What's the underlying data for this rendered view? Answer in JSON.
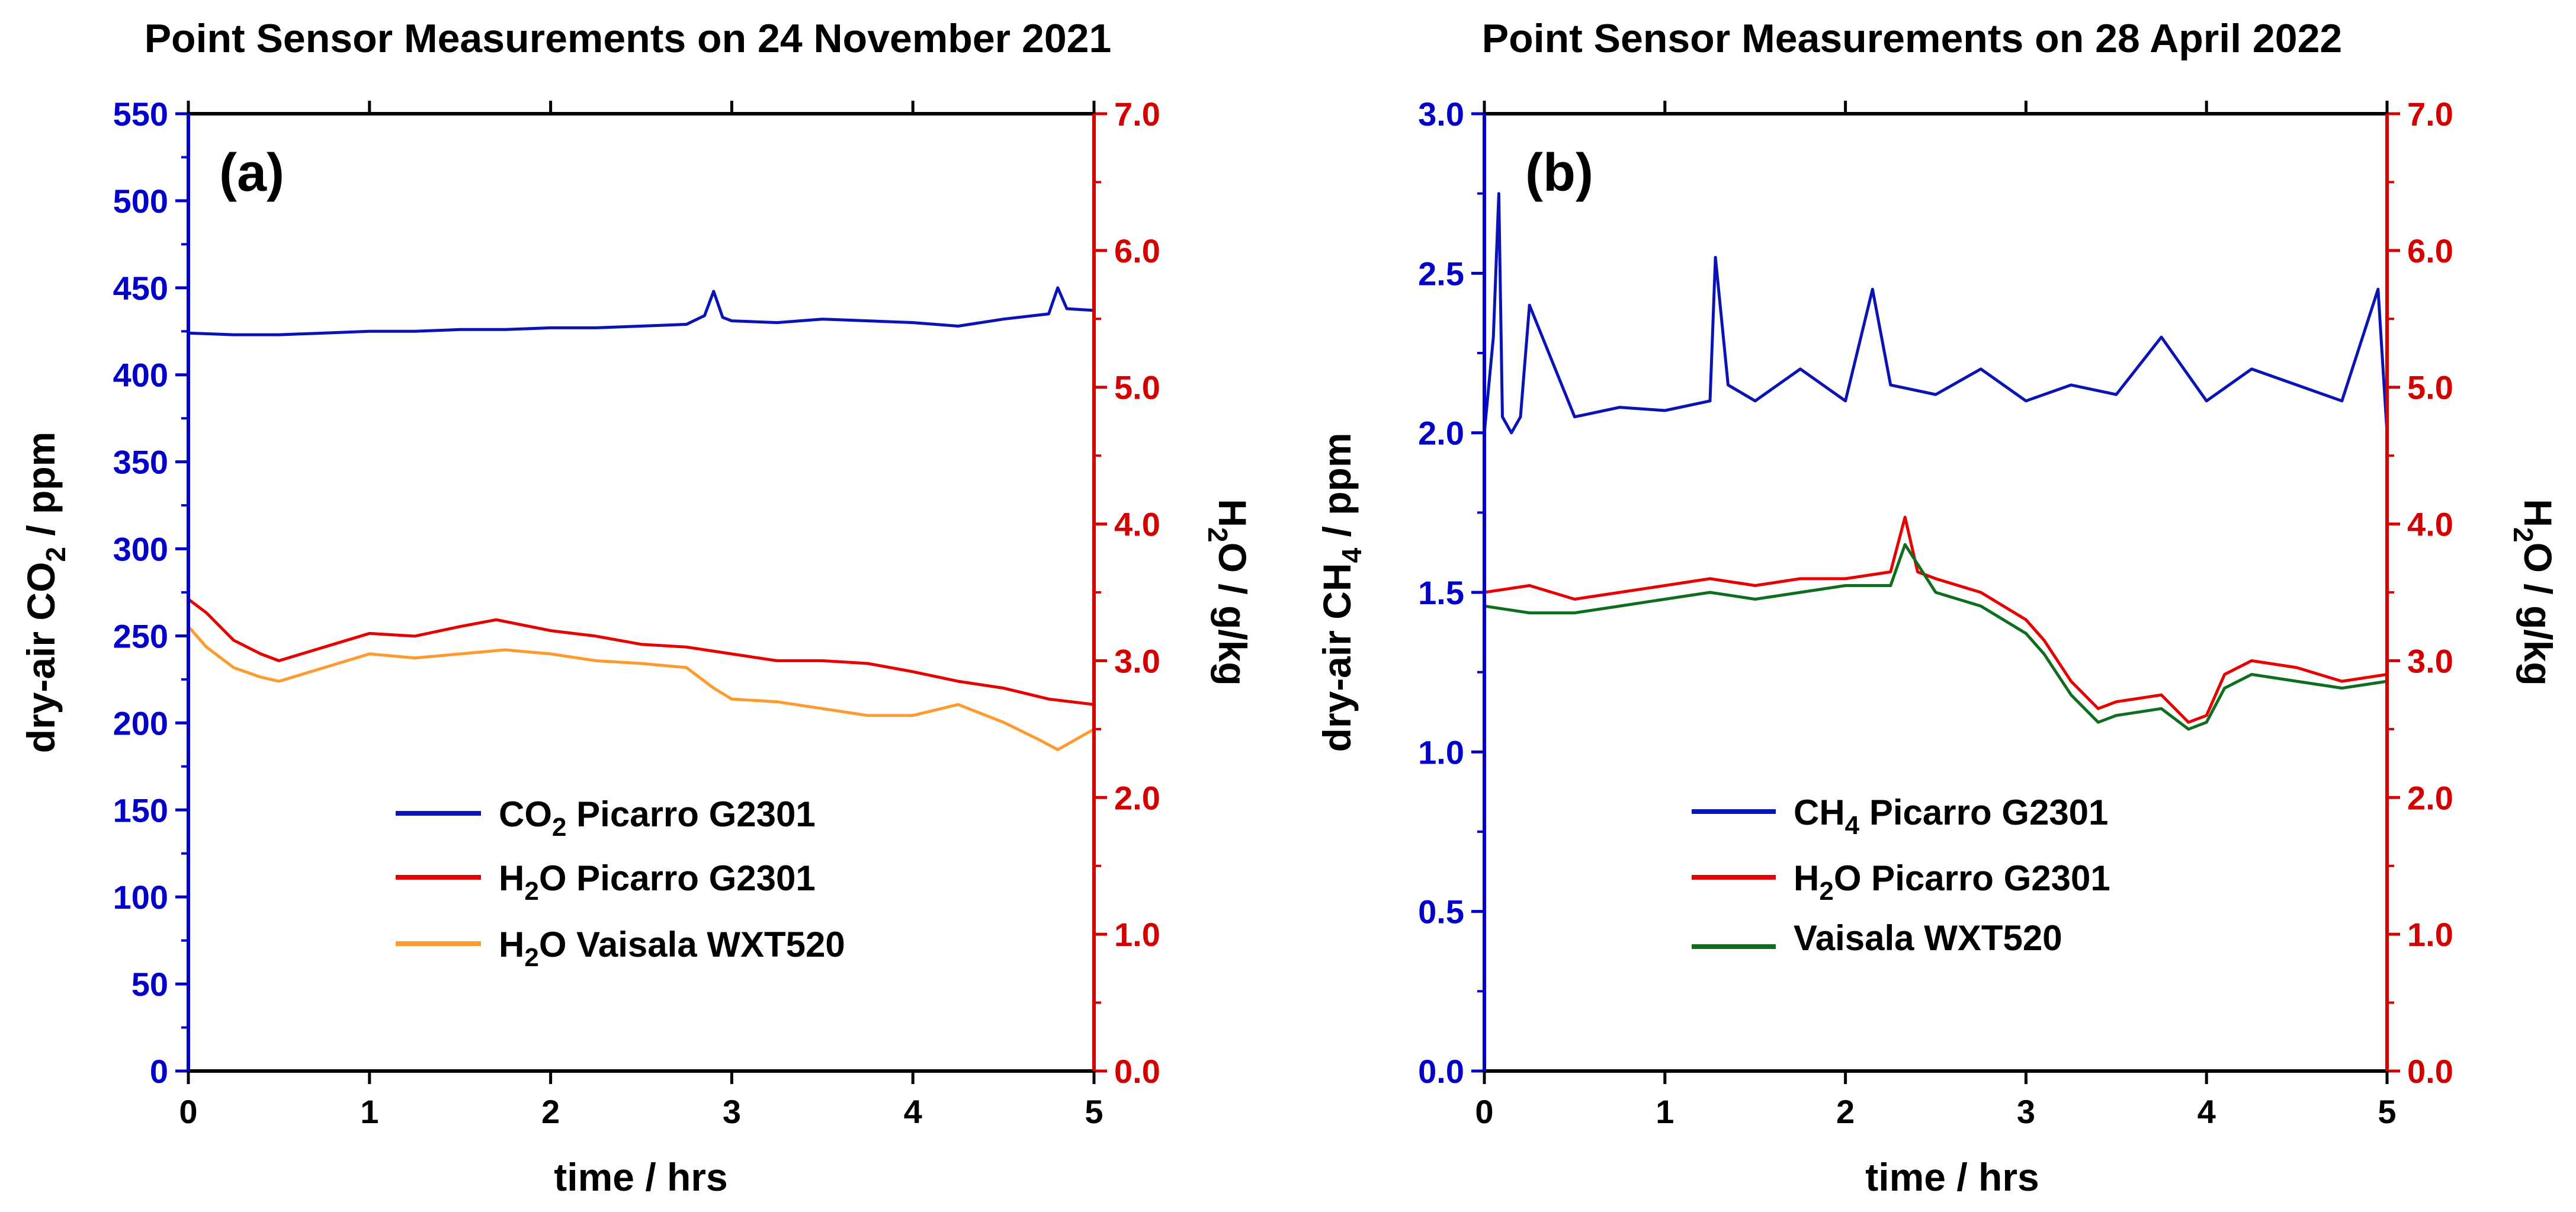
{
  "chart_data": [
    {
      "type": "line",
      "title": "Point Sensor Measurements on 24 November 2021",
      "panel_label": "(a)",
      "xlabel": "time / hrs",
      "ylabel_left": {
        "main": "dry-air CO",
        "sub": "2",
        "tail": " / ppm"
      },
      "ylabel_right": {
        "main": "H",
        "sub": "2",
        "tail": "O / g/kg"
      },
      "xlim": [
        0,
        5
      ],
      "ylim_left": [
        0,
        550
      ],
      "ylim_right": [
        0,
        7
      ],
      "x_ticks": [
        "0",
        "1",
        "2",
        "3",
        "4",
        "5"
      ],
      "y_ticks_left": [
        "0",
        "50",
        "100",
        "150",
        "200",
        "250",
        "300",
        "350",
        "400",
        "450",
        "500",
        "550"
      ],
      "y_ticks_right": [
        "0.0",
        "1.0",
        "2.0",
        "3.0",
        "4.0",
        "5.0",
        "6.0",
        "7.0"
      ],
      "legend_position": "bottom-center",
      "series": [
        {
          "legend": {
            "pre": "CO",
            "sub": "2",
            "post": " Picarro G2301"
          },
          "axis": "left",
          "color": "#0a14b4",
          "x": [
            0,
            0.25,
            0.5,
            0.75,
            1,
            1.25,
            1.5,
            1.75,
            2,
            2.25,
            2.5,
            2.75,
            2.85,
            2.9,
            2.95,
            3,
            3.25,
            3.5,
            3.75,
            4,
            4.25,
            4.5,
            4.75,
            4.8,
            4.85,
            5
          ],
          "y": [
            424,
            423,
            423,
            424,
            425,
            425,
            426,
            426,
            427,
            427,
            428,
            429,
            434,
            448,
            433,
            431,
            430,
            432,
            431,
            430,
            428,
            432,
            435,
            450,
            438,
            437
          ]
        },
        {
          "legend": {
            "pre": "H",
            "sub": "2",
            "post": "O Picarro G2301"
          },
          "axis": "right",
          "color": "#e60000",
          "x": [
            0,
            0.1,
            0.25,
            0.4,
            0.5,
            0.75,
            1,
            1.25,
            1.5,
            1.7,
            2,
            2.25,
            2.5,
            2.75,
            3,
            3.25,
            3.5,
            3.75,
            4,
            4.25,
            4.5,
            4.75,
            5
          ],
          "y": [
            3.45,
            3.35,
            3.15,
            3.05,
            3.0,
            3.1,
            3.2,
            3.18,
            3.25,
            3.3,
            3.22,
            3.18,
            3.12,
            3.1,
            3.05,
            3.0,
            3.0,
            2.98,
            2.92,
            2.85,
            2.8,
            2.72,
            2.68
          ]
        },
        {
          "legend": {
            "pre": "H",
            "sub": "2",
            "post": "O Vaisala WXT520"
          },
          "axis": "right",
          "color": "#ff9a2e",
          "x": [
            0,
            0.1,
            0.25,
            0.4,
            0.5,
            0.75,
            1,
            1.25,
            1.5,
            1.75,
            2,
            2.25,
            2.5,
            2.75,
            2.9,
            3,
            3.25,
            3.5,
            3.75,
            4,
            4.25,
            4.5,
            4.7,
            4.8,
            5
          ],
          "y": [
            3.25,
            3.1,
            2.95,
            2.88,
            2.85,
            2.95,
            3.05,
            3.02,
            3.05,
            3.08,
            3.05,
            3.0,
            2.98,
            2.95,
            2.8,
            2.72,
            2.7,
            2.65,
            2.6,
            2.6,
            2.68,
            2.55,
            2.42,
            2.35,
            2.5
          ]
        }
      ]
    },
    {
      "type": "line",
      "title": "Point Sensor Measurements on 28 April 2022",
      "panel_label": "(b)",
      "xlabel": "time / hrs",
      "ylabel_left": {
        "main": "dry-air CH",
        "sub": "4",
        "tail": " / ppm"
      },
      "ylabel_right": {
        "main": "H",
        "sub": "2",
        "tail": "O / g/kg"
      },
      "xlim": [
        0,
        5
      ],
      "ylim_left": [
        0,
        3
      ],
      "ylim_right": [
        0,
        7
      ],
      "x_ticks": [
        "0",
        "1",
        "2",
        "3",
        "4",
        "5"
      ],
      "y_ticks_left": [
        "0.0",
        "0.5",
        "1.0",
        "1.5",
        "2.0",
        "2.5",
        "3.0"
      ],
      "y_ticks_right": [
        "0.0",
        "1.0",
        "2.0",
        "3.0",
        "4.0",
        "5.0",
        "6.0",
        "7.0"
      ],
      "legend_position": "bottom-center",
      "series": [
        {
          "legend": {
            "pre": "CH",
            "sub": "4",
            "post": " Picarro G2301"
          },
          "axis": "left",
          "color": "#0a14b4",
          "x": [
            0,
            0.05,
            0.08,
            0.1,
            0.15,
            0.2,
            0.25,
            0.5,
            0.75,
            1,
            1.25,
            1.28,
            1.35,
            1.5,
            1.75,
            2,
            2.15,
            2.25,
            2.5,
            2.75,
            3,
            3.25,
            3.5,
            3.75,
            4,
            4.25,
            4.5,
            4.75,
            4.95,
            5
          ],
          "y": [
            2.0,
            2.3,
            2.75,
            2.05,
            2.0,
            2.05,
            2.4,
            2.05,
            2.08,
            2.07,
            2.1,
            2.55,
            2.15,
            2.1,
            2.2,
            2.1,
            2.45,
            2.15,
            2.12,
            2.2,
            2.1,
            2.15,
            2.12,
            2.3,
            2.1,
            2.2,
            2.15,
            2.1,
            2.45,
            2.0
          ]
        },
        {
          "legend": {
            "pre": "H",
            "sub": "2",
            "post": "O Picarro G2301"
          },
          "axis": "right",
          "color": "#e60000",
          "x": [
            0,
            0.25,
            0.5,
            0.75,
            1,
            1.25,
            1.5,
            1.75,
            2,
            2.25,
            2.33,
            2.4,
            2.5,
            2.75,
            3,
            3.1,
            3.25,
            3.4,
            3.5,
            3.75,
            3.9,
            4,
            4.1,
            4.25,
            4.5,
            4.75,
            5
          ],
          "y": [
            3.5,
            3.55,
            3.45,
            3.5,
            3.55,
            3.6,
            3.55,
            3.6,
            3.6,
            3.65,
            4.05,
            3.65,
            3.6,
            3.5,
            3.3,
            3.15,
            2.85,
            2.65,
            2.7,
            2.75,
            2.55,
            2.6,
            2.9,
            3.0,
            2.95,
            2.85,
            2.9
          ]
        },
        {
          "legend": {
            "pre": "",
            "sub": "",
            "post": "Vaisala WXT520"
          },
          "axis": "right",
          "color": "#0f6e1e",
          "x": [
            0,
            0.25,
            0.5,
            0.75,
            1,
            1.25,
            1.5,
            1.75,
            2,
            2.25,
            2.33,
            2.5,
            2.75,
            3,
            3.1,
            3.25,
            3.4,
            3.5,
            3.75,
            3.9,
            4,
            4.1,
            4.25,
            4.5,
            4.75,
            5
          ],
          "y": [
            3.4,
            3.35,
            3.35,
            3.4,
            3.45,
            3.5,
            3.45,
            3.5,
            3.55,
            3.55,
            3.85,
            3.5,
            3.4,
            3.2,
            3.05,
            2.75,
            2.55,
            2.6,
            2.65,
            2.5,
            2.55,
            2.8,
            2.9,
            2.85,
            2.8,
            2.85
          ]
        }
      ]
    }
  ]
}
